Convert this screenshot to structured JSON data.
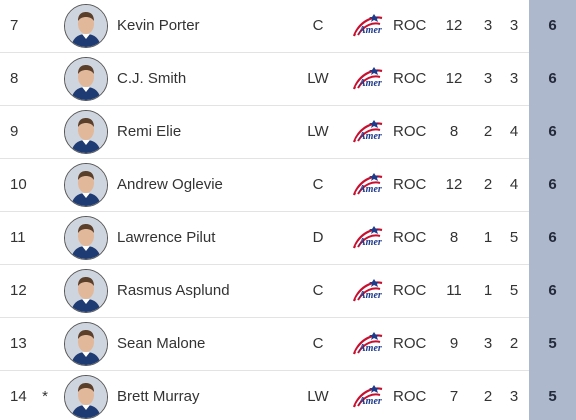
{
  "players": [
    {
      "rank": "7",
      "flag": "",
      "name": "Kevin Porter",
      "pos": "C",
      "team": "ROC",
      "gp": "12",
      "g": "3",
      "a": "3",
      "pts": "6"
    },
    {
      "rank": "8",
      "flag": "",
      "name": "C.J. Smith",
      "pos": "LW",
      "team": "ROC",
      "gp": "12",
      "g": "3",
      "a": "3",
      "pts": "6"
    },
    {
      "rank": "9",
      "flag": "",
      "name": "Remi Elie",
      "pos": "LW",
      "team": "ROC",
      "gp": "8",
      "g": "2",
      "a": "4",
      "pts": "6"
    },
    {
      "rank": "10",
      "flag": "",
      "name": "Andrew Oglevie",
      "pos": "C",
      "team": "ROC",
      "gp": "12",
      "g": "2",
      "a": "4",
      "pts": "6"
    },
    {
      "rank": "11",
      "flag": "",
      "name": "Lawrence Pilut",
      "pos": "D",
      "team": "ROC",
      "gp": "8",
      "g": "1",
      "a": "5",
      "pts": "6"
    },
    {
      "rank": "12",
      "flag": "",
      "name": "Rasmus Asplund",
      "pos": "C",
      "team": "ROC",
      "gp": "11",
      "g": "1",
      "a": "5",
      "pts": "6"
    },
    {
      "rank": "13",
      "flag": "",
      "name": "Sean Malone",
      "pos": "C",
      "team": "ROC",
      "gp": "9",
      "g": "3",
      "a": "2",
      "pts": "5"
    },
    {
      "rank": "14",
      "flag": "*",
      "name": "Brett Murray",
      "pos": "LW",
      "team": "ROC",
      "gp": "7",
      "g": "2",
      "a": "3",
      "pts": "5"
    }
  ],
  "icons": {
    "avatar": "player-headshot-icon",
    "team_logo": "rochester-americans-logo-icon"
  },
  "colors": {
    "points_column": "#aeb8cd",
    "logo_red": "#c8102e",
    "logo_blue": "#1e3a8a"
  }
}
